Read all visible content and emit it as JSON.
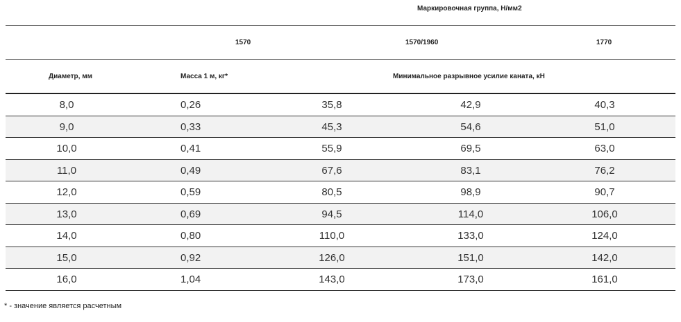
{
  "header": {
    "group_label": "Маркировочная группа, Н/мм2",
    "grade_a": "1570",
    "grade_b": "1570/1960",
    "grade_c": "1770",
    "col_diameter": "Диаметр, мм",
    "col_mass": "Масса 1 м, кг*",
    "col_force": "Минимальное разрывное усилие каната, кН"
  },
  "rows": [
    {
      "diameter": "8,0",
      "mass": "0,26",
      "f1570": "35,8",
      "f1570_1960": "42,9",
      "f1770": "40,3"
    },
    {
      "diameter": "9,0",
      "mass": "0,33",
      "f1570": "45,3",
      "f1570_1960": "54,6",
      "f1770": "51,0"
    },
    {
      "diameter": "10,0",
      "mass": "0,41",
      "f1570": "55,9",
      "f1570_1960": "69,5",
      "f1770": "63,0"
    },
    {
      "diameter": "11,0",
      "mass": "0,49",
      "f1570": "67,6",
      "f1570_1960": "83,1",
      "f1770": "76,2"
    },
    {
      "diameter": "12,0",
      "mass": "0,59",
      "f1570": "80,5",
      "f1570_1960": "98,9",
      "f1770": "90,7"
    },
    {
      "diameter": "13,0",
      "mass": "0,69",
      "f1570": "94,5",
      "f1570_1960": "114,0",
      "f1770": "106,0"
    },
    {
      "diameter": "14,0",
      "mass": "0,80",
      "f1570": "110,0",
      "f1570_1960": "133,0",
      "f1770": "124,0"
    },
    {
      "diameter": "15,0",
      "mass": "0,92",
      "f1570": "126,0",
      "f1570_1960": "151,0",
      "f1770": "142,0"
    },
    {
      "diameter": "16,0",
      "mass": "1,04",
      "f1570": "143,0",
      "f1570_1960": "173,0",
      "f1770": "161,0"
    }
  ],
  "footnote": "* - значение является расчетным",
  "colors": {
    "alt_row": "#f2f2f2",
    "rule": "#333333",
    "text": "#333333"
  }
}
